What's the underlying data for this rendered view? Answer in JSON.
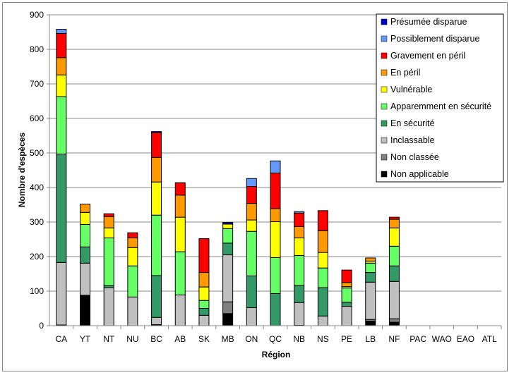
{
  "chart_data": {
    "type": "bar",
    "stacked": true,
    "title": "",
    "xlabel": "Région",
    "ylabel": "Nombre d'espèces",
    "ylim": [
      0,
      900
    ],
    "yticks": [
      0,
      100,
      200,
      300,
      400,
      500,
      600,
      700,
      800,
      900
    ],
    "grid": true,
    "legend_position": "top-right",
    "categories": [
      "CA",
      "YT",
      "NT",
      "NU",
      "BC",
      "AB",
      "SK",
      "MB",
      "ON",
      "QC",
      "NB",
      "NS",
      "PE",
      "LB",
      "NF",
      "PAC",
      "WAO",
      "EAO",
      "ATL"
    ],
    "series": [
      {
        "name": "Non applicable",
        "color": "#000000",
        "values": [
          2,
          88,
          0,
          0,
          3,
          0,
          0,
          35,
          0,
          0,
          1,
          0,
          0,
          13,
          10,
          0,
          0,
          0,
          0
        ]
      },
      {
        "name": "Non classée",
        "color": "#808080",
        "values": [
          0,
          0,
          0,
          0,
          0,
          0,
          0,
          34,
          0,
          0,
          0,
          0,
          0,
          5,
          10,
          0,
          0,
          0,
          0
        ]
      },
      {
        "name": "Inclassable",
        "color": "#c0c0c0",
        "values": [
          181,
          93,
          110,
          83,
          21,
          89,
          30,
          136,
          52,
          0,
          66,
          28,
          56,
          108,
          108,
          0,
          0,
          0,
          0
        ]
      },
      {
        "name": "En sécurité",
        "color": "#339966",
        "values": [
          314,
          47,
          6,
          0,
          121,
          0,
          20,
          34,
          92,
          93,
          49,
          82,
          12,
          28,
          45,
          0,
          0,
          0,
          0
        ]
      },
      {
        "name": "Apparemment en sécurité",
        "color": "#66ff66",
        "values": [
          166,
          65,
          138,
          90,
          175,
          125,
          23,
          42,
          129,
          104,
          87,
          57,
          41,
          27,
          57,
          0,
          0,
          0,
          0
        ]
      },
      {
        "name": "Vulnérable",
        "color": "#ffff00",
        "values": [
          63,
          35,
          29,
          53,
          96,
          100,
          39,
          13,
          33,
          104,
          51,
          45,
          4,
          6,
          53,
          0,
          0,
          0,
          0
        ]
      },
      {
        "name": "En péril",
        "color": "#ff9900",
        "values": [
          50,
          24,
          33,
          28,
          71,
          64,
          42,
          0,
          48,
          38,
          33,
          63,
          12,
          9,
          25,
          0,
          0,
          0,
          0
        ]
      },
      {
        "name": "Gravement en péril",
        "color": "#ff0000",
        "values": [
          70,
          0,
          8,
          15,
          72,
          36,
          98,
          0,
          49,
          103,
          39,
          58,
          36,
          0,
          6,
          0,
          0,
          0,
          0
        ]
      },
      {
        "name": "Possiblement disparue",
        "color": "#6699ff",
        "values": [
          12,
          0,
          0,
          0,
          0,
          0,
          0,
          0,
          23,
          35,
          4,
          0,
          0,
          0,
          0,
          0,
          0,
          0,
          0
        ]
      },
      {
        "name": "Présumée disparue",
        "color": "#0000cc",
        "values": [
          0,
          0,
          0,
          0,
          3,
          0,
          0,
          5,
          0,
          0,
          0,
          0,
          0,
          0,
          0,
          0,
          0,
          0,
          0
        ]
      }
    ]
  }
}
